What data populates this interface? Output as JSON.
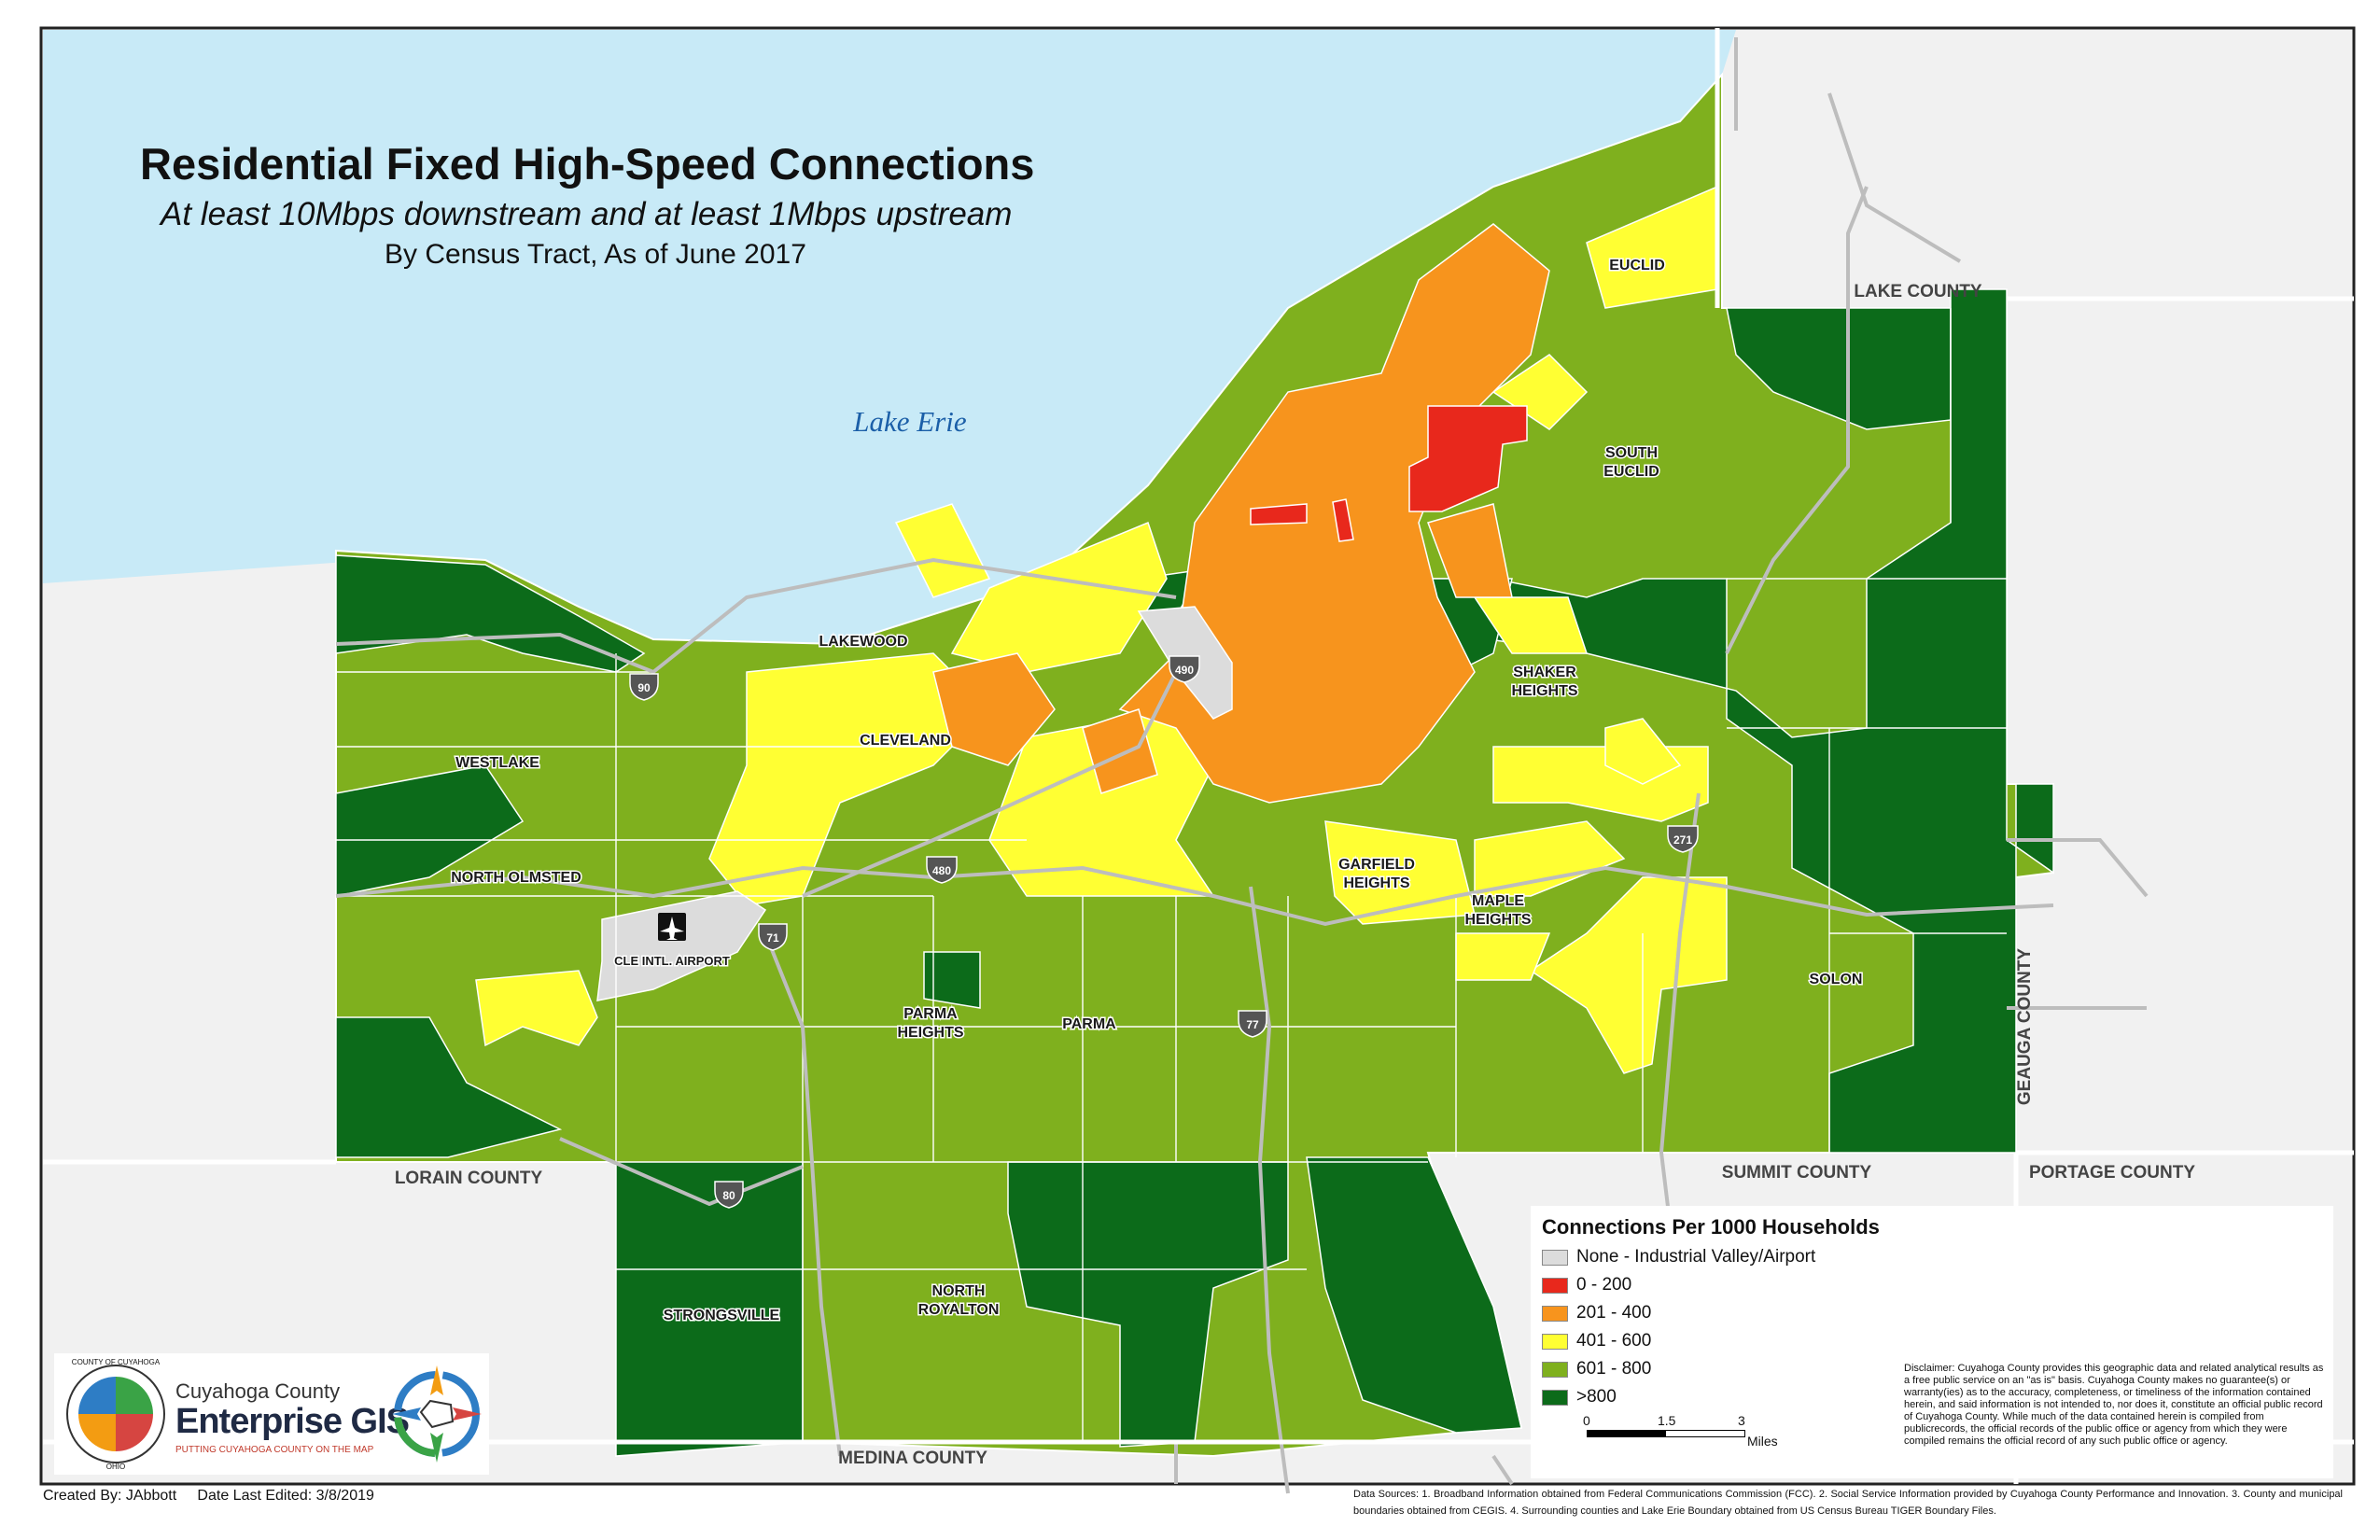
{
  "title": "Residential Fixed High-Speed Connections",
  "subtitle": "At least 10Mbps downstream and at least 1Mbps upstream",
  "subtitle2": "By Census Tract, As of June 2017",
  "lake_label": "Lake Erie",
  "colors": {
    "none": "#dcdcdc",
    "c0_200": "#e8281c",
    "c201_400": "#f7941d",
    "c401_600": "#ffff33",
    "c601_800": "#7fb01e",
    "c800": "#0c6b1a",
    "lake": "#c8eaf7",
    "outside": "#f1f1f1"
  },
  "legend": {
    "title": "Connections Per 1000 Households",
    "items": [
      {
        "label": "None - Industrial Valley/Airport",
        "color": "#dcdcdc"
      },
      {
        "label": "0 - 200",
        "color": "#e8281c"
      },
      {
        "label": "201 - 400",
        "color": "#f7941d"
      },
      {
        "label": "401 - 600",
        "color": "#ffff33"
      },
      {
        "label": "601 - 800",
        "color": "#7fb01e"
      },
      {
        "label": ">800",
        "color": "#0c6b1a"
      }
    ],
    "scale": {
      "l0": "0",
      "l1": "1.5",
      "l2": "3",
      "unit": "Miles"
    }
  },
  "disclaimer": "Disclaimer: Cuyahoga County provides this geographic data and related analytical results as a free public service on an \"as is\" basis. Cuyahoga County makes no guarantee(s) or warranty(ies) as to the accuracy, completeness, or timeliness of the information contained herein, and said information is not intended to, nor does it, constitute an official public record of Cuyahoga County. While much of the data contained herein is compiled from publicrecords, the official records of the public office or agency from which they were compiled remains the official record of any such public office or agency.",
  "counties": {
    "lake": "LAKE COUNTY",
    "geauga": "GEAUGA COUNTY",
    "summit": "SUMMIT COUNTY",
    "portage": "PORTAGE COUNTY",
    "lorain": "LORAIN COUNTY",
    "medina": "MEDINA COUNTY"
  },
  "cities": {
    "euclid": "EUCLID",
    "south_euclid_1": "SOUTH",
    "south_euclid_2": "EUCLID",
    "lakewood": "LAKEWOOD",
    "shaker_1": "SHAKER",
    "shaker_2": "HEIGHTS",
    "westlake": "WESTLAKE",
    "cleveland": "CLEVELAND",
    "north_olmsted": "NORTH OLMSTED",
    "garfield_1": "GARFIELD",
    "garfield_2": "HEIGHTS",
    "maple_1": "MAPLE",
    "maple_2": "HEIGHTS",
    "airport": "CLE INTL. AIRPORT",
    "parma_heights_1": "PARMA",
    "parma_heights_2": "HEIGHTS",
    "parma": "PARMA",
    "solon": "SOLON",
    "strongsville": "STRONGSVILLE",
    "north_royalton_1": "NORTH",
    "north_royalton_2": "ROYALTON"
  },
  "highways": {
    "i90": "90",
    "i490": "490",
    "i480": "480",
    "i71": "71",
    "i77": "77",
    "i271": "271",
    "i80": "80"
  },
  "logo": {
    "seal_top": "COUNTY OF CUYAHOGA",
    "seal_bottom": "OHIO",
    "line1": "Cuyahoga County",
    "line2": "Enterprise GIS",
    "line3": "PUTTING CUYAHOGA COUNTY ON THE MAP"
  },
  "footer": {
    "created_by": "Created By: JAbbott",
    "edited": "Date Last Edited: 3/8/2019",
    "sources": "Data Sources: 1. Broadband Information obtained from Federal Communications Commission (FCC). 2. Social Service Information provided by Cuyahoga County Performance and Innovation. 3. County and municipal boundaries obtained from CEGIS. 4. Surrounding counties and Lake Erie Boundary obtained from US Census Bureau TIGER Boundary Files."
  }
}
